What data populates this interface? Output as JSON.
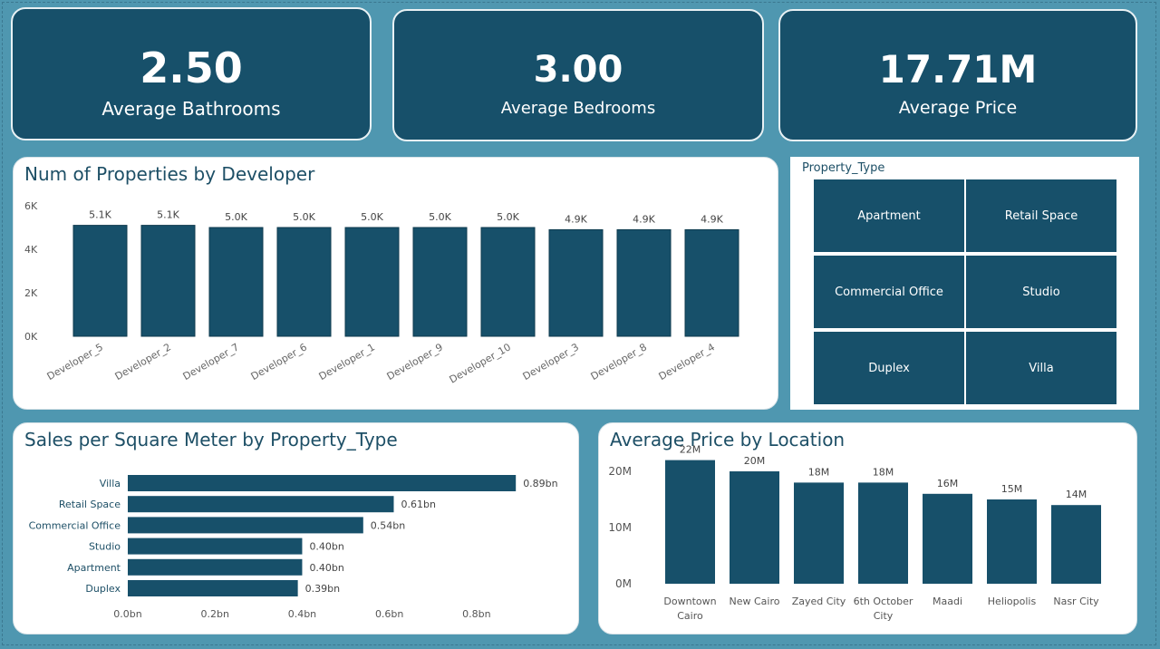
{
  "kpis": {
    "bathrooms": {
      "value": "2.50",
      "label": "Average Bathrooms"
    },
    "bedrooms": {
      "value": "3.00",
      "label": "Average Bedrooms"
    },
    "price": {
      "value": "17.71M",
      "label": "Average Price"
    }
  },
  "slicer": {
    "title": "Property_Type",
    "options": [
      "Apartment",
      "Retail Space",
      "Commercial Office",
      "Studio",
      "Duplex",
      "Villa"
    ]
  },
  "chart_data": [
    {
      "type": "bar",
      "title": "Num of Properties by Developer",
      "categories": [
        "Developer_5",
        "Developer_2",
        "Developer_7",
        "Developer_6",
        "Developer_1",
        "Developer_9",
        "Developer_10",
        "Developer_3",
        "Developer_8",
        "Developer_4"
      ],
      "values": [
        5100,
        5100,
        5000,
        5000,
        5000,
        5000,
        5000,
        4900,
        4900,
        4900
      ],
      "data_labels": [
        "5.1K",
        "5.1K",
        "5.0K",
        "5.0K",
        "5.0K",
        "5.0K",
        "5.0K",
        "4.9K",
        "4.9K",
        "4.9K"
      ],
      "ylim": [
        0,
        6000
      ],
      "yticks": [
        0,
        2000,
        4000,
        6000
      ],
      "ytick_labels": [
        "0K",
        "2K",
        "4K",
        "6K"
      ],
      "bar_color": "#17506a"
    },
    {
      "type": "bar",
      "orientation": "horizontal",
      "title": "Sales per Square Meter by Property_Type",
      "categories": [
        "Villa",
        "Retail Space",
        "Commercial Office",
        "Studio",
        "Apartment",
        "Duplex"
      ],
      "values": [
        0.89,
        0.61,
        0.54,
        0.4,
        0.4,
        0.39
      ],
      "data_labels": [
        "0.89bn",
        "0.61bn",
        "0.54bn",
        "0.40bn",
        "0.40bn",
        "0.39bn"
      ],
      "xlim": [
        0,
        0.9
      ],
      "xticks": [
        0,
        0.2,
        0.4,
        0.6,
        0.8
      ],
      "xtick_labels": [
        "0.0bn",
        "0.2bn",
        "0.4bn",
        "0.6bn",
        "0.8bn"
      ],
      "bar_color": "#17506a"
    },
    {
      "type": "bar",
      "title": "Average Price by Location",
      "categories": [
        [
          "Downtown",
          "Cairo"
        ],
        [
          "New Cairo"
        ],
        [
          "Zayed City"
        ],
        [
          "6th October",
          "City"
        ],
        [
          "Maadi"
        ],
        [
          "Heliopolis"
        ],
        [
          "Nasr City"
        ]
      ],
      "values": [
        22,
        20,
        18,
        18,
        16,
        15,
        14
      ],
      "data_labels": [
        "22M",
        "20M",
        "18M",
        "18M",
        "16M",
        "15M",
        "14M"
      ],
      "ylim": [
        0,
        25
      ],
      "yticks": [
        0,
        10,
        20
      ],
      "ytick_labels": [
        "0M",
        "10M",
        "20M"
      ],
      "bar_color": "#17506a"
    }
  ]
}
